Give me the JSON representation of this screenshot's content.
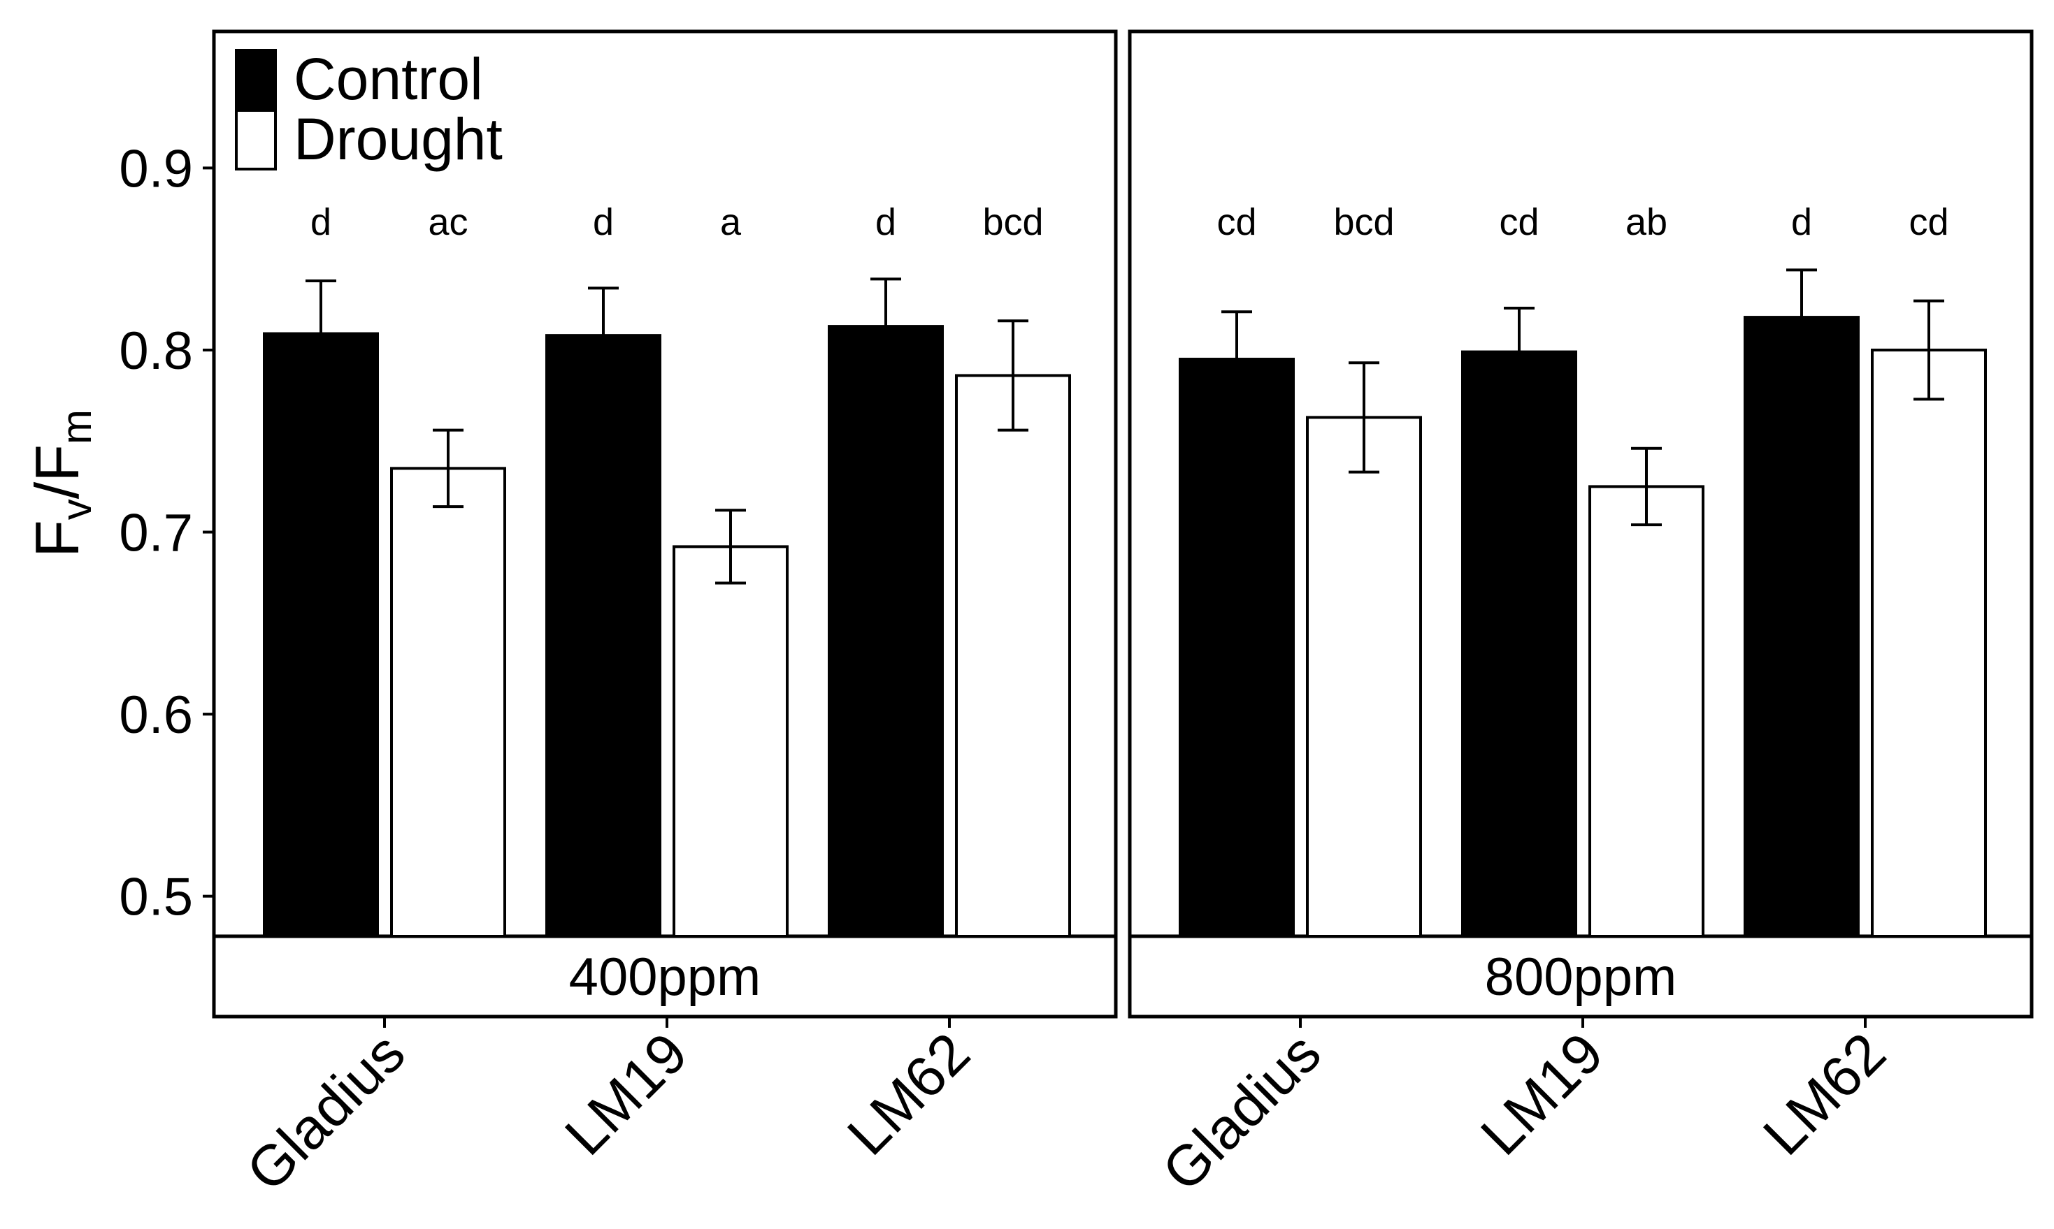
{
  "chart_data": {
    "type": "bar",
    "ylabel": {
      "main": "F",
      "sub1": "v",
      "slash": "/",
      "main2": "F",
      "sub2": "m"
    },
    "ylim": [
      0.478,
      0.975
    ],
    "yticks": [
      0.5,
      0.6,
      0.7,
      0.8,
      0.9
    ],
    "ytick_labels": [
      "0.5",
      "0.6",
      "0.7",
      "0.8",
      "0.9"
    ],
    "categories": [
      "Gladius",
      "LM19",
      "LM62"
    ],
    "legend": {
      "position": "top-left",
      "entries": [
        {
          "name": "Control",
          "fill": "#000000"
        },
        {
          "name": "Drought",
          "fill": "#ffffff"
        }
      ]
    },
    "colors": {
      "control": "#000000",
      "drought": "#ffffff",
      "stroke": "#000000"
    },
    "panels": [
      {
        "label": "400ppm",
        "series": [
          {
            "name": "Control",
            "values": [
              0.809,
              0.808,
              0.813
            ],
            "errors": [
              0.029,
              0.026,
              0.026
            ],
            "labels": [
              "d",
              "d",
              "d"
            ]
          },
          {
            "name": "Drought",
            "values": [
              0.735,
              0.692,
              0.786
            ],
            "errors": [
              0.021,
              0.02,
              0.03
            ],
            "labels": [
              "ac",
              "a",
              "bcd"
            ]
          }
        ]
      },
      {
        "label": "800ppm",
        "series": [
          {
            "name": "Control",
            "values": [
              0.795,
              0.799,
              0.818
            ],
            "errors": [
              0.026,
              0.024,
              0.026
            ],
            "labels": [
              "cd",
              "cd",
              "d"
            ]
          },
          {
            "name": "Drought",
            "values": [
              0.763,
              0.725,
              0.8
            ],
            "errors": [
              0.03,
              0.021,
              0.027
            ],
            "labels": [
              "bcd",
              "ab",
              "cd"
            ]
          }
        ]
      }
    ]
  }
}
